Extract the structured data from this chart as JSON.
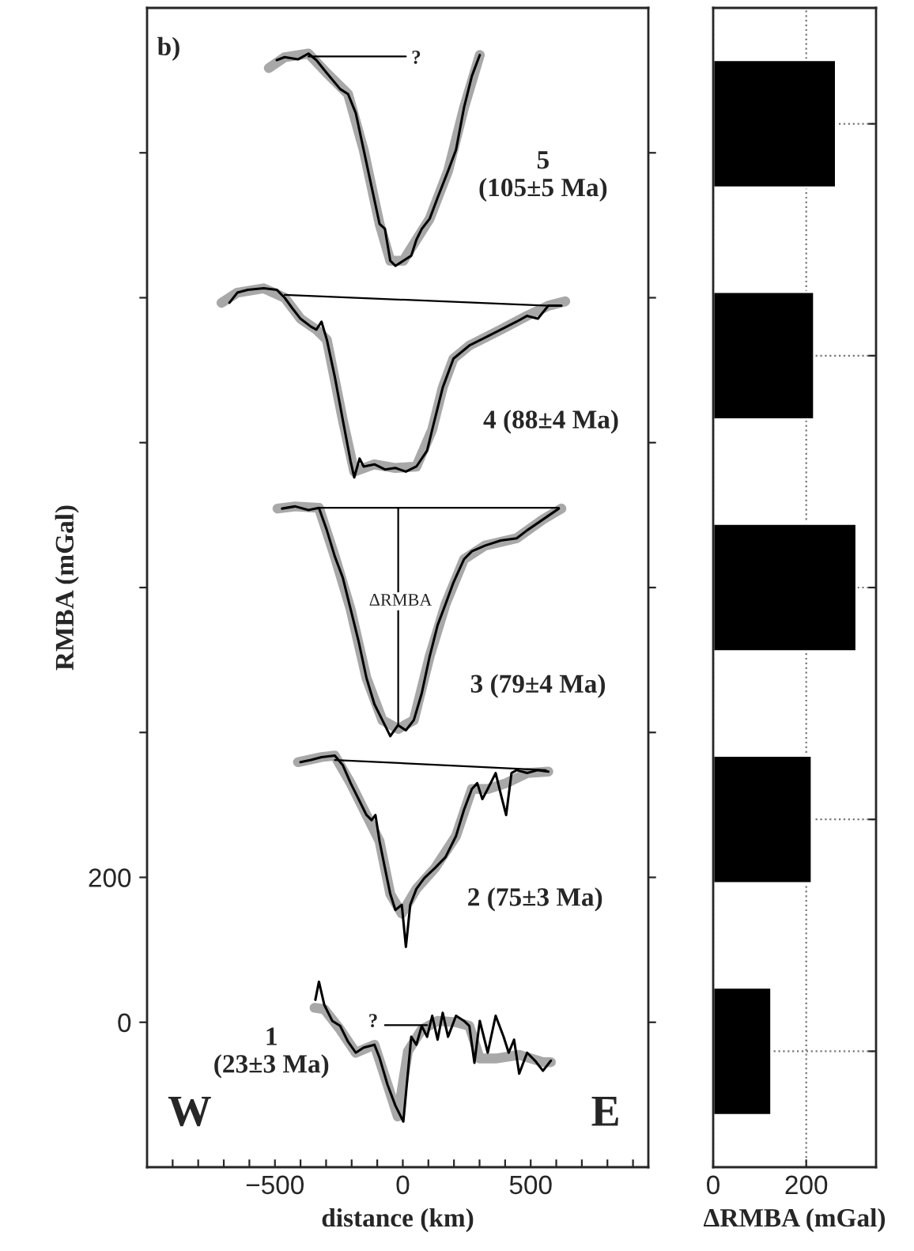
{
  "chart_data": [
    {
      "type": "line",
      "title": "b)",
      "xlabel": "distance (km)",
      "ylabel": "RMBA (mGal)",
      "xlim": [
        -1000,
        960
      ],
      "ylim": [
        -200,
        1400
      ],
      "xticks": [
        {
          "value": -900,
          "label": null
        },
        {
          "value": -800,
          "label": null
        },
        {
          "value": -700,
          "label": null
        },
        {
          "value": -600,
          "label": null
        },
        {
          "value": -500,
          "label": "−500"
        },
        {
          "value": -400,
          "label": null
        },
        {
          "value": -300,
          "label": null
        },
        {
          "value": -200,
          "label": null
        },
        {
          "value": -100,
          "label": null
        },
        0,
        {
          "value": 100,
          "label": null
        },
        {
          "value": 200,
          "label": null
        },
        {
          "value": 300,
          "label": null
        },
        {
          "value": 400,
          "label": null
        },
        500,
        {
          "value": 600,
          "label": null
        },
        {
          "value": 700,
          "label": null
        },
        {
          "value": 800,
          "label": null
        },
        {
          "value": 900,
          "label": null
        }
      ],
      "yticks": [
        0,
        200,
        {
          "value": 400,
          "label": null
        },
        {
          "value": 600,
          "label": null
        },
        {
          "value": 800,
          "label": null
        },
        {
          "value": 1000,
          "label": null
        },
        {
          "value": 1200,
          "label": null
        }
      ],
      "grid": false,
      "legend": false,
      "series": [
        {
          "color": "#a8a8a8",
          "x": [
            -524,
            -462,
            -369,
            -297,
            -214,
            -153,
            -91,
            -49,
            2,
            53,
            105,
            177,
            239,
            301
          ],
          "values": [
            1317,
            1332,
            1337,
            1310,
            1281,
            1204,
            1102,
            1051,
            1051,
            1080,
            1109,
            1175,
            1262,
            1335
          ]
        },
        {
          "color": "#000000",
          "x": [
            -493,
            -462,
            -410,
            -369,
            -338,
            -297,
            -245,
            -214,
            -184,
            -153,
            -122,
            -91,
            -70,
            -49,
            -29,
            2,
            33,
            53,
            74,
            105,
            136,
            177,
            208,
            239,
            270,
            301
          ],
          "values": [
            1328,
            1332,
            1329,
            1337,
            1328,
            1310,
            1288,
            1281,
            1255,
            1204,
            1153,
            1102,
            1095,
            1051,
            1044,
            1051,
            1058,
            1080,
            1095,
            1109,
            1138,
            1175,
            1204,
            1262,
            1306,
            1335
          ]
        },
        {
          "color": "#000000",
          "x": [
            -369,
            12
          ],
          "values": [
            1333,
            1333
          ]
        },
        {
          "color": "#a8a8a8",
          "x": [
            -709,
            -647,
            -544,
            -462,
            -400,
            -338,
            -297,
            -235,
            -190,
            -111,
            -29,
            53,
            115,
            156,
            198,
            260,
            383,
            486,
            569,
            635
          ],
          "values": [
            993,
            1007,
            1013,
            1000,
            971,
            956,
            942,
            832,
            760,
            770,
            765,
            767,
            818,
            876,
            916,
            934,
            956,
            975,
            989,
            995
          ]
        },
        {
          "color": "#000000",
          "x": [
            -678,
            -647,
            -606,
            -544,
            -493,
            -462,
            -431,
            -400,
            -359,
            -338,
            -318,
            -297,
            -266,
            -235,
            -204,
            -190,
            -169,
            -153,
            -111,
            -70,
            -29,
            12,
            53,
            95,
            115,
            156,
            198,
            260,
            322,
            383,
            445,
            486,
            528,
            569,
            620
          ],
          "values": [
            993,
            1007,
            1011,
            1013,
            1011,
            1000,
            985,
            971,
            960,
            956,
            967,
            942,
            891,
            832,
            774,
            752,
            778,
            767,
            770,
            763,
            765,
            760,
            767,
            789,
            818,
            876,
            916,
            934,
            945,
            956,
            967,
            975,
            971,
            989,
            989
          ]
        },
        {
          "color": "#000000",
          "x": [
            -462,
            569
          ],
          "values": [
            1004,
            989
          ]
        },
        {
          "color": "#a8a8a8",
          "x": [
            -490,
            -421,
            -328,
            -266,
            -204,
            -142,
            -80,
            -18,
            43,
            105,
            167,
            239,
            322,
            445,
            548,
            620
          ],
          "values": [
            709,
            712,
            710,
            643,
            570,
            475,
            417,
            405,
            417,
            505,
            577,
            639,
            658,
            668,
            694,
            709
          ]
        },
        {
          "color": "#000000",
          "x": [
            -472,
            -421,
            -369,
            -328,
            -297,
            -266,
            -235,
            -204,
            -173,
            -142,
            -111,
            -80,
            -49,
            -19,
            12,
            43,
            74,
            105,
            136,
            167,
            198,
            239,
            270,
            322,
            383,
            445,
            486,
            548,
            610
          ],
          "values": [
            709,
            712,
            707,
            710,
            679,
            643,
            614,
            570,
            526,
            475,
            439,
            417,
            395,
            410,
            403,
            417,
            454,
            505,
            548,
            577,
            607,
            639,
            650,
            658,
            665,
            668,
            679,
            694,
            709
          ]
        },
        {
          "color": "#000000",
          "x": [
            -328,
            610
          ],
          "values": [
            710,
            710
          ]
        },
        {
          "color": "#000000",
          "x": [
            -18,
            -18
          ],
          "values": [
            410,
            709
          ]
        },
        {
          "color": "#a8a8a8",
          "x": [
            -410,
            -318,
            -266,
            -204,
            -142,
            -91,
            -49,
            -4,
            53,
            126,
            208,
            270,
            332,
            404,
            486,
            569
          ],
          "values": [
            359,
            366,
            368,
            330,
            286,
            250,
            177,
            150,
            184,
            213,
            257,
            322,
            322,
            330,
            344,
            346
          ]
        },
        {
          "color": "#000000",
          "x": [
            -400,
            -359,
            -318,
            -266,
            -235,
            -204,
            -173,
            -142,
            -122,
            -107,
            -91,
            -70,
            -49,
            -29,
            -4,
            12,
            29,
            53,
            84,
            126,
            167,
            208,
            239,
            270,
            291,
            311,
            332,
            363,
            383,
            404,
            425,
            445,
            486,
            528,
            569
          ],
          "values": [
            359,
            362,
            366,
            368,
            355,
            330,
            308,
            286,
            279,
            286,
            250,
            213,
            177,
            155,
            162,
            104,
            162,
            184,
            199,
            213,
            228,
            257,
            293,
            322,
            330,
            308,
            322,
            344,
            315,
            286,
            344,
            348,
            344,
            348,
            346
          ]
        },
        {
          "color": "#000000",
          "x": [
            -266,
            559
          ],
          "values": [
            362,
            348
          ]
        },
        {
          "color": "#a8a8a8",
          "x": [
            -345,
            -307,
            -245,
            -184,
            -111,
            -60,
            -20,
            20,
            74,
            136,
            208,
            260,
            301,
            363,
            455,
            548,
            579
          ],
          "values": [
            20,
            18,
            -10,
            -42,
            -31,
            -86,
            -130,
            -40,
            -10,
            2,
            0,
            -5,
            -50,
            -50,
            -45,
            -55,
            -55
          ]
        },
        {
          "color": "#000000",
          "x": [
            -342,
            -328,
            -307,
            -276,
            -245,
            -214,
            -184,
            -153,
            -111,
            -91,
            -60,
            -29,
            2,
            33,
            53,
            74,
            95,
            115,
            136,
            156,
            177,
            208,
            239,
            260,
            280,
            301,
            332,
            363,
            394,
            414,
            435,
            455,
            486,
            517,
            548,
            579
          ],
          "values": [
            31,
            56,
            24,
            2,
            -5,
            -27,
            -42,
            -35,
            -31,
            -49,
            -86,
            -115,
            -137,
            -20,
            -31,
            -5,
            -20,
            9,
            -24,
            13,
            -20,
            9,
            2,
            -5,
            -56,
            2,
            -42,
            9,
            -20,
            -42,
            -24,
            -71,
            -42,
            -53,
            -67,
            -53
          ]
        },
        {
          "color": "#000000",
          "x": [
            -70,
            95
          ],
          "values": [
            -4,
            -4
          ]
        }
      ],
      "annotations": [
        "?",
        "5\n(105±5 Ma)",
        "4 (88±4 Ma)",
        {
          "text": "ΔRMBA",
          "x": -9,
          "y": 581
        },
        "3 (79±4 Ma)",
        "2 (75±3 Ma)",
        "?",
        "1\n(23±3 Ma)",
        "W",
        "E"
      ]
    },
    {
      "type": "bar",
      "orientation": "horizontal",
      "xlabel": "ΔRMBA (mGal)",
      "categories": [
        null,
        null,
        null,
        null,
        null
      ],
      "values": [
        264,
        217,
        308,
        212,
        125
      ],
      "color": "#000000",
      "xlim": [
        0,
        350
      ],
      "xticks": [
        0,
        200
      ],
      "grid": true,
      "tick_labels": "x"
    }
  ]
}
